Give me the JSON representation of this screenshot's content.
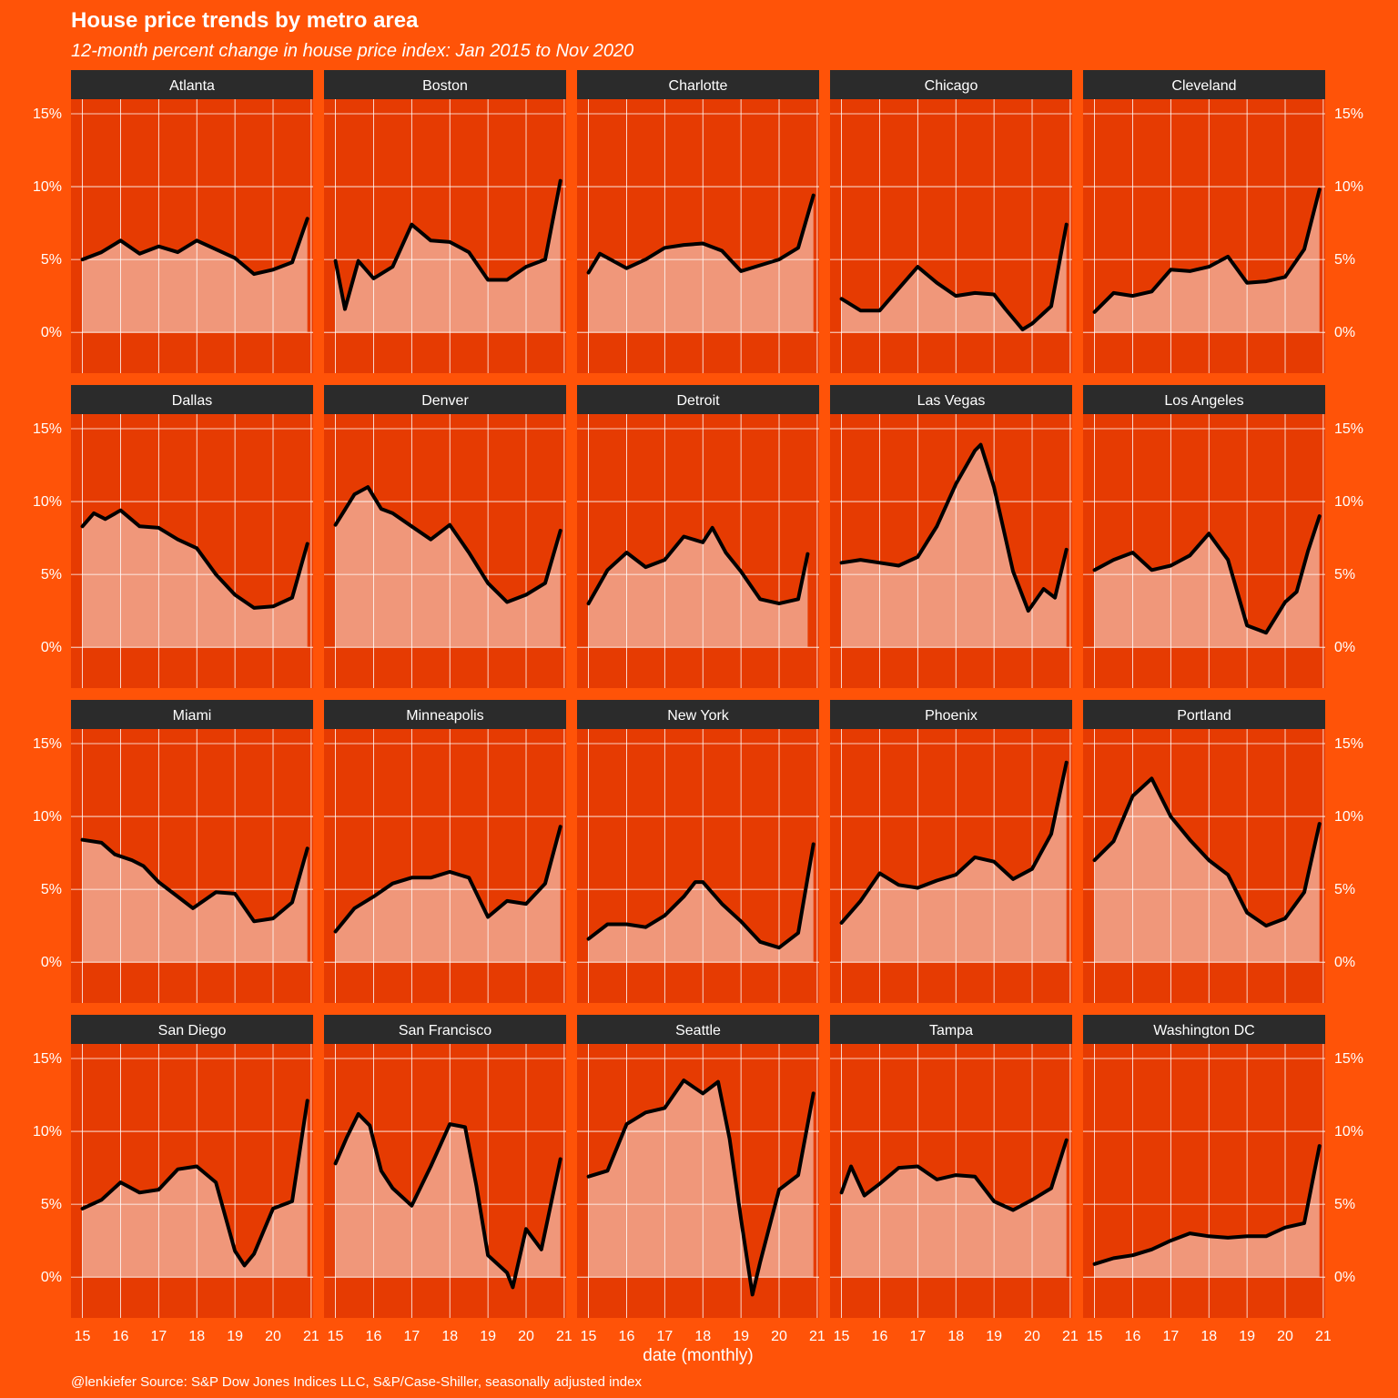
{
  "colors": {
    "background": "#ff5308",
    "panel": "#e63b02",
    "strip": "#2b2b2b",
    "fill": "#f0977a",
    "line": "#000000",
    "grid": "#ffffff"
  },
  "chart_data": {
    "type": "area",
    "title": "House price trends by metro area",
    "subtitle": "12-month percent change in house price index: Jan 2015 to Nov 2020",
    "xlabel": "date (monthly)",
    "ylabel": "",
    "caption": "@lenkiefer Source: S&P Dow Jones Indices LLC, S&P/Case-Shiller, seasonally adjusted index",
    "xlim": [
      2014.7,
      2021.05
    ],
    "ylim": [
      -2.8,
      16.0
    ],
    "x_ticks": [
      2015,
      2016,
      2017,
      2018,
      2019,
      2020,
      2021
    ],
    "x_tick_labels": [
      "15",
      "16",
      "17",
      "18",
      "19",
      "20",
      "21"
    ],
    "y_ticks": [
      0,
      5,
      10,
      15
    ],
    "y_tick_labels": [
      "0%",
      "5%",
      "10%",
      "15%"
    ],
    "grid": true,
    "facet_layout": {
      "rows": 4,
      "cols": 5
    },
    "series": [
      {
        "name": "Atlanta",
        "points": [
          [
            2015.0,
            5.0
          ],
          [
            2015.5,
            5.5
          ],
          [
            2016.0,
            6.3
          ],
          [
            2016.5,
            5.4
          ],
          [
            2017.0,
            5.9
          ],
          [
            2017.5,
            5.5
          ],
          [
            2018.0,
            6.3
          ],
          [
            2018.5,
            5.7
          ],
          [
            2019.0,
            5.1
          ],
          [
            2019.5,
            4.0
          ],
          [
            2020.0,
            4.3
          ],
          [
            2020.5,
            4.8
          ],
          [
            2020.9,
            7.8
          ]
        ]
      },
      {
        "name": "Boston",
        "points": [
          [
            2015.0,
            4.9
          ],
          [
            2015.25,
            1.6
          ],
          [
            2015.6,
            4.9
          ],
          [
            2016.0,
            3.7
          ],
          [
            2016.5,
            4.5
          ],
          [
            2017.0,
            7.4
          ],
          [
            2017.5,
            6.3
          ],
          [
            2018.0,
            6.2
          ],
          [
            2018.5,
            5.5
          ],
          [
            2019.0,
            3.6
          ],
          [
            2019.5,
            3.6
          ],
          [
            2020.0,
            4.5
          ],
          [
            2020.5,
            5.0
          ],
          [
            2020.9,
            10.4
          ]
        ]
      },
      {
        "name": "Charlotte",
        "points": [
          [
            2015.0,
            4.1
          ],
          [
            2015.3,
            5.4
          ],
          [
            2016.0,
            4.4
          ],
          [
            2016.5,
            5.0
          ],
          [
            2017.0,
            5.8
          ],
          [
            2017.5,
            6.0
          ],
          [
            2018.0,
            6.1
          ],
          [
            2018.5,
            5.6
          ],
          [
            2019.0,
            4.2
          ],
          [
            2019.5,
            4.6
          ],
          [
            2020.0,
            5.0
          ],
          [
            2020.5,
            5.8
          ],
          [
            2020.9,
            9.4
          ]
        ]
      },
      {
        "name": "Chicago",
        "points": [
          [
            2015.0,
            2.3
          ],
          [
            2015.5,
            1.5
          ],
          [
            2016.0,
            1.5
          ],
          [
            2016.5,
            3.0
          ],
          [
            2017.0,
            4.5
          ],
          [
            2017.5,
            3.4
          ],
          [
            2018.0,
            2.5
          ],
          [
            2018.5,
            2.7
          ],
          [
            2019.0,
            2.6
          ],
          [
            2019.3,
            1.6
          ],
          [
            2019.75,
            0.2
          ],
          [
            2020.0,
            0.6
          ],
          [
            2020.5,
            1.8
          ],
          [
            2020.9,
            7.4
          ]
        ]
      },
      {
        "name": "Cleveland",
        "points": [
          [
            2015.0,
            1.4
          ],
          [
            2015.5,
            2.7
          ],
          [
            2016.0,
            2.5
          ],
          [
            2016.5,
            2.8
          ],
          [
            2017.0,
            4.3
          ],
          [
            2017.5,
            4.2
          ],
          [
            2018.0,
            4.5
          ],
          [
            2018.5,
            5.2
          ],
          [
            2019.0,
            3.4
          ],
          [
            2019.5,
            3.5
          ],
          [
            2020.0,
            3.8
          ],
          [
            2020.5,
            5.7
          ],
          [
            2020.9,
            9.8
          ]
        ]
      },
      {
        "name": "Dallas",
        "points": [
          [
            2015.0,
            8.3
          ],
          [
            2015.3,
            9.2
          ],
          [
            2015.6,
            8.8
          ],
          [
            2016.0,
            9.4
          ],
          [
            2016.5,
            8.3
          ],
          [
            2017.0,
            8.2
          ],
          [
            2017.5,
            7.4
          ],
          [
            2018.0,
            6.8
          ],
          [
            2018.5,
            5.0
          ],
          [
            2019.0,
            3.6
          ],
          [
            2019.5,
            2.7
          ],
          [
            2020.0,
            2.8
          ],
          [
            2020.5,
            3.4
          ],
          [
            2020.9,
            7.1
          ]
        ]
      },
      {
        "name": "Denver",
        "points": [
          [
            2015.0,
            8.4
          ],
          [
            2015.5,
            10.5
          ],
          [
            2015.85,
            11.0
          ],
          [
            2016.2,
            9.5
          ],
          [
            2016.5,
            9.2
          ],
          [
            2017.0,
            8.3
          ],
          [
            2017.5,
            7.4
          ],
          [
            2018.0,
            8.4
          ],
          [
            2018.5,
            6.5
          ],
          [
            2019.0,
            4.4
          ],
          [
            2019.5,
            3.1
          ],
          [
            2020.0,
            3.6
          ],
          [
            2020.5,
            4.4
          ],
          [
            2020.9,
            8.0
          ]
        ]
      },
      {
        "name": "Detroit",
        "points": [
          [
            2015.0,
            3.0
          ],
          [
            2015.5,
            5.3
          ],
          [
            2016.0,
            6.5
          ],
          [
            2016.5,
            5.5
          ],
          [
            2017.0,
            6.0
          ],
          [
            2017.5,
            7.6
          ],
          [
            2018.0,
            7.2
          ],
          [
            2018.25,
            8.2
          ],
          [
            2018.6,
            6.5
          ],
          [
            2019.0,
            5.2
          ],
          [
            2019.5,
            3.3
          ],
          [
            2020.0,
            3.0
          ],
          [
            2020.5,
            3.3
          ],
          [
            2020.75,
            6.4
          ]
        ]
      },
      {
        "name": "Las Vegas",
        "points": [
          [
            2015.0,
            5.8
          ],
          [
            2015.5,
            6.0
          ],
          [
            2016.0,
            5.8
          ],
          [
            2016.5,
            5.6
          ],
          [
            2017.0,
            6.2
          ],
          [
            2017.5,
            8.3
          ],
          [
            2018.0,
            11.2
          ],
          [
            2018.5,
            13.5
          ],
          [
            2018.65,
            13.9
          ],
          [
            2019.0,
            11.0
          ],
          [
            2019.5,
            5.2
          ],
          [
            2019.9,
            2.5
          ],
          [
            2020.3,
            4.0
          ],
          [
            2020.6,
            3.4
          ],
          [
            2020.9,
            6.7
          ]
        ]
      },
      {
        "name": "Los Angeles",
        "points": [
          [
            2015.0,
            5.3
          ],
          [
            2015.5,
            6.0
          ],
          [
            2016.0,
            6.5
          ],
          [
            2016.5,
            5.3
          ],
          [
            2017.0,
            5.6
          ],
          [
            2017.5,
            6.3
          ],
          [
            2018.0,
            7.8
          ],
          [
            2018.5,
            6.0
          ],
          [
            2019.0,
            1.5
          ],
          [
            2019.3,
            1.2
          ],
          [
            2019.5,
            1.0
          ],
          [
            2020.0,
            3.1
          ],
          [
            2020.3,
            3.8
          ],
          [
            2020.6,
            6.6
          ],
          [
            2020.9,
            9.0
          ]
        ]
      },
      {
        "name": "Miami",
        "points": [
          [
            2015.0,
            8.4
          ],
          [
            2015.5,
            8.2
          ],
          [
            2015.85,
            7.4
          ],
          [
            2016.3,
            7.0
          ],
          [
            2016.6,
            6.6
          ],
          [
            2017.0,
            5.5
          ],
          [
            2017.5,
            4.5
          ],
          [
            2017.9,
            3.7
          ],
          [
            2018.5,
            4.8
          ],
          [
            2019.0,
            4.7
          ],
          [
            2019.5,
            2.8
          ],
          [
            2020.0,
            3.0
          ],
          [
            2020.5,
            4.1
          ],
          [
            2020.9,
            7.8
          ]
        ]
      },
      {
        "name": "Minneapolis",
        "points": [
          [
            2015.0,
            2.1
          ],
          [
            2015.5,
            3.7
          ],
          [
            2016.0,
            4.5
          ],
          [
            2016.5,
            5.4
          ],
          [
            2017.0,
            5.8
          ],
          [
            2017.5,
            5.8
          ],
          [
            2018.0,
            6.2
          ],
          [
            2018.5,
            5.8
          ],
          [
            2019.0,
            3.1
          ],
          [
            2019.5,
            4.2
          ],
          [
            2020.0,
            4.0
          ],
          [
            2020.5,
            5.4
          ],
          [
            2020.9,
            9.3
          ]
        ]
      },
      {
        "name": "New York",
        "points": [
          [
            2015.0,
            1.6
          ],
          [
            2015.5,
            2.6
          ],
          [
            2016.0,
            2.6
          ],
          [
            2016.5,
            2.4
          ],
          [
            2017.0,
            3.2
          ],
          [
            2017.5,
            4.5
          ],
          [
            2017.8,
            5.5
          ],
          [
            2018.0,
            5.5
          ],
          [
            2018.5,
            4.0
          ],
          [
            2019.0,
            2.8
          ],
          [
            2019.5,
            1.4
          ],
          [
            2020.0,
            1.0
          ],
          [
            2020.5,
            2.0
          ],
          [
            2020.9,
            8.1
          ]
        ]
      },
      {
        "name": "Phoenix",
        "points": [
          [
            2015.0,
            2.7
          ],
          [
            2015.5,
            4.2
          ],
          [
            2016.0,
            6.1
          ],
          [
            2016.5,
            5.3
          ],
          [
            2017.0,
            5.1
          ],
          [
            2017.5,
            5.6
          ],
          [
            2018.0,
            6.0
          ],
          [
            2018.5,
            7.2
          ],
          [
            2019.0,
            6.9
          ],
          [
            2019.5,
            5.7
          ],
          [
            2020.0,
            6.4
          ],
          [
            2020.5,
            8.8
          ],
          [
            2020.9,
            13.7
          ]
        ]
      },
      {
        "name": "Portland",
        "points": [
          [
            2015.0,
            7.0
          ],
          [
            2015.5,
            8.3
          ],
          [
            2016.0,
            11.4
          ],
          [
            2016.5,
            12.6
          ],
          [
            2017.0,
            10.0
          ],
          [
            2017.5,
            8.4
          ],
          [
            2018.0,
            7.0
          ],
          [
            2018.5,
            6.0
          ],
          [
            2019.0,
            3.4
          ],
          [
            2019.5,
            2.5
          ],
          [
            2020.0,
            3.0
          ],
          [
            2020.5,
            4.8
          ],
          [
            2020.9,
            9.5
          ]
        ]
      },
      {
        "name": "San Diego",
        "points": [
          [
            2015.0,
            4.7
          ],
          [
            2015.5,
            5.3
          ],
          [
            2016.0,
            6.5
          ],
          [
            2016.5,
            5.8
          ],
          [
            2017.0,
            6.0
          ],
          [
            2017.5,
            7.4
          ],
          [
            2018.0,
            7.6
          ],
          [
            2018.5,
            6.5
          ],
          [
            2019.0,
            1.8
          ],
          [
            2019.25,
            0.8
          ],
          [
            2019.5,
            1.6
          ],
          [
            2020.0,
            4.7
          ],
          [
            2020.5,
            5.2
          ],
          [
            2020.9,
            12.1
          ]
        ]
      },
      {
        "name": "San Francisco",
        "points": [
          [
            2015.0,
            7.8
          ],
          [
            2015.3,
            9.6
          ],
          [
            2015.6,
            11.2
          ],
          [
            2015.9,
            10.4
          ],
          [
            2016.2,
            7.3
          ],
          [
            2016.5,
            6.1
          ],
          [
            2017.0,
            4.9
          ],
          [
            2017.5,
            7.6
          ],
          [
            2018.0,
            10.5
          ],
          [
            2018.4,
            10.3
          ],
          [
            2018.7,
            6.2
          ],
          [
            2019.0,
            1.5
          ],
          [
            2019.5,
            0.3
          ],
          [
            2019.65,
            -0.7
          ],
          [
            2020.0,
            3.3
          ],
          [
            2020.4,
            1.9
          ],
          [
            2020.9,
            8.1
          ]
        ]
      },
      {
        "name": "Seattle",
        "points": [
          [
            2015.0,
            6.9
          ],
          [
            2015.5,
            7.3
          ],
          [
            2016.0,
            10.5
          ],
          [
            2016.5,
            11.3
          ],
          [
            2017.0,
            11.6
          ],
          [
            2017.5,
            13.5
          ],
          [
            2018.0,
            12.6
          ],
          [
            2018.4,
            13.4
          ],
          [
            2018.7,
            9.5
          ],
          [
            2019.0,
            4.0
          ],
          [
            2019.3,
            -1.2
          ],
          [
            2019.5,
            1.0
          ],
          [
            2020.0,
            6.0
          ],
          [
            2020.5,
            7.0
          ],
          [
            2020.9,
            12.6
          ]
        ]
      },
      {
        "name": "Tampa",
        "points": [
          [
            2015.0,
            5.8
          ],
          [
            2015.25,
            7.6
          ],
          [
            2015.6,
            5.6
          ],
          [
            2016.0,
            6.4
          ],
          [
            2016.5,
            7.5
          ],
          [
            2017.0,
            7.6
          ],
          [
            2017.5,
            6.7
          ],
          [
            2018.0,
            7.0
          ],
          [
            2018.5,
            6.9
          ],
          [
            2019.0,
            5.2
          ],
          [
            2019.5,
            4.6
          ],
          [
            2020.0,
            5.3
          ],
          [
            2020.5,
            6.1
          ],
          [
            2020.9,
            9.4
          ]
        ]
      },
      {
        "name": "Washington DC",
        "points": [
          [
            2015.0,
            0.9
          ],
          [
            2015.5,
            1.3
          ],
          [
            2016.0,
            1.5
          ],
          [
            2016.5,
            1.9
          ],
          [
            2017.0,
            2.5
          ],
          [
            2017.5,
            3.0
          ],
          [
            2018.0,
            2.8
          ],
          [
            2018.5,
            2.7
          ],
          [
            2019.0,
            2.8
          ],
          [
            2019.5,
            2.8
          ],
          [
            2020.0,
            3.4
          ],
          [
            2020.5,
            3.7
          ],
          [
            2020.9,
            9.0
          ]
        ]
      }
    ]
  }
}
